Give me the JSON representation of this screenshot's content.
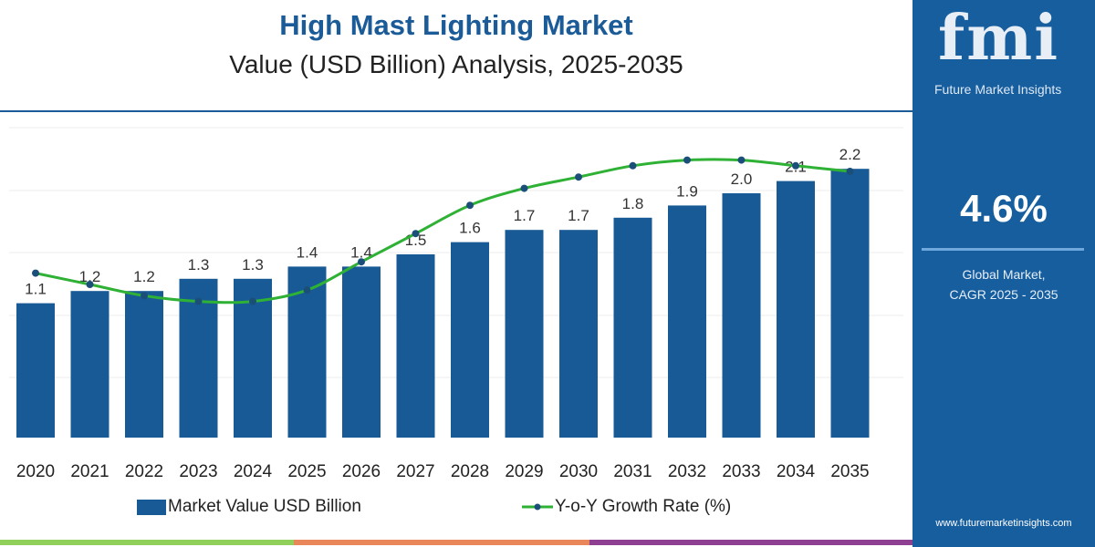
{
  "header": {
    "title": "High Mast Lighting Market",
    "subtitle": "Value (USD Billion) Analysis, 2025-2035"
  },
  "panel": {
    "logo": "fmi",
    "logo_sub": "Future Market Insights",
    "cagr": "4.6%",
    "cagr_label_1": "Global Market,",
    "cagr_label_2": "CAGR 2025 - 2035",
    "url": "www.futuremarketinsights.com"
  },
  "colors": {
    "bar": "#175a96",
    "line": "#2eb135",
    "marker": "#1b4f7a",
    "panel": "#175e9f",
    "strip": [
      "#8fcf5a",
      "#e9875a",
      "#8e3f91"
    ]
  },
  "chart_data": {
    "type": "bar",
    "title": "High Mast Lighting Market",
    "subtitle": "Value (USD Billion) Analysis, 2025-2035",
    "categories": [
      "2020",
      "2021",
      "2022",
      "2023",
      "2024",
      "2025",
      "2026",
      "2027",
      "2028",
      "2029",
      "2030",
      "2031",
      "2032",
      "2033",
      "2034",
      "2035"
    ],
    "series": [
      {
        "name": "Market Value USD Billion",
        "type": "bar",
        "values": [
          1.1,
          1.2,
          1.2,
          1.3,
          1.3,
          1.4,
          1.4,
          1.5,
          1.6,
          1.7,
          1.7,
          1.8,
          1.9,
          2.0,
          2.1,
          2.2
        ],
        "labels": [
          "1.1",
          "1.2",
          "1.2",
          "1.3",
          "1.3",
          "1.4",
          "1.4",
          "1.5",
          "1.6",
          "1.7",
          "1.7",
          "1.8",
          "1.9",
          "2.0",
          "2.1",
          "2.2"
        ]
      },
      {
        "name": "Y-o-Y Growth Rate (%)",
        "type": "line",
        "values": [
          4.2,
          4.0,
          3.8,
          3.7,
          3.7,
          3.9,
          4.4,
          4.9,
          5.4,
          5.7,
          5.9,
          6.1,
          6.2,
          6.2,
          6.1,
          6.0
        ]
      }
    ],
    "ylim": [
      0,
      2.4
    ],
    "grid": true,
    "legend": "bottom"
  }
}
